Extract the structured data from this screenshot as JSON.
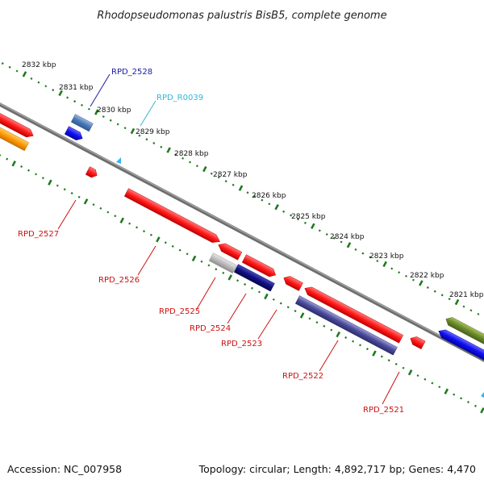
{
  "title": "Rhodopseudomonas palustris BisB5, complete genome",
  "footer": {
    "accession": "Accession: NC_007958",
    "summary": "Topology: circular; Length: 4,892,717 bp; Genes: 4,470"
  },
  "ruler": {
    "unit": "kbp",
    "labels": [
      "2832 kbp",
      "2831 kbp",
      "2830 kbp",
      "2829 kbp",
      "2828 kbp",
      "2827 kbp",
      "2826 kbp",
      "2825 kbp",
      "2824 kbp",
      "2823 kbp",
      "2822 kbp",
      "2821 kbp"
    ]
  },
  "colors": {
    "backbone": "#888888",
    "tick": "#1e7a1e",
    "label_dark_blue": "#1a1aa6",
    "label_cyan": "#33b5d6",
    "label_red": "#cc1111"
  },
  "gene_labels": {
    "top": [
      {
        "text": "RPD_2528",
        "color": "#1a1aa6"
      },
      {
        "text": "RPD_R0039",
        "color": "#33b5d6"
      }
    ],
    "bottom": [
      {
        "text": "RPD_2527",
        "color": "#cc1111"
      },
      {
        "text": "RPD_2526",
        "color": "#cc1111"
      },
      {
        "text": "RPD_2525",
        "color": "#cc1111"
      },
      {
        "text": "RPD_2524",
        "color": "#cc1111"
      },
      {
        "text": "RPD_2523",
        "color": "#cc1111"
      },
      {
        "text": "RPD_2522",
        "color": "#cc1111"
      },
      {
        "text": "RPD_2521",
        "color": "#cc1111"
      }
    ]
  },
  "features": [
    {
      "name": "red-feature",
      "color": "#ff1a1a"
    },
    {
      "name": "orange-feature",
      "color": "#ff9900"
    },
    {
      "name": "steel-blue-feature",
      "color": "#4a78b8"
    },
    {
      "name": "blue-feature",
      "color": "#1010ee"
    },
    {
      "name": "light-blue-feature",
      "color": "#33b5f0"
    },
    {
      "name": "gray-feature",
      "color": "#bbbbbb"
    },
    {
      "name": "navy-feature",
      "color": "#101080"
    },
    {
      "name": "slate-blue-feature",
      "color": "#4a4a9a"
    },
    {
      "name": "olive-feature",
      "color": "#6a8a2a"
    }
  ]
}
